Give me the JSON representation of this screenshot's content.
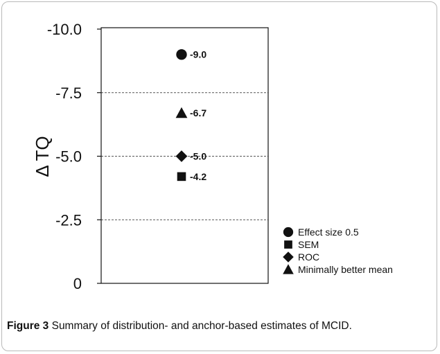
{
  "chart_data": {
    "type": "scatter",
    "ylabel": "Δ TQ",
    "ylim": [
      0,
      -10
    ],
    "yticks": [
      "-10.0",
      "-7.5",
      "-5.0",
      "-2.5",
      "0"
    ],
    "ytick_values": [
      -10,
      -7.5,
      -5,
      -2.5,
      0
    ],
    "gridlines_at": [
      -7.5,
      -5,
      -2.5
    ],
    "legend_position": "bottom-right",
    "series": [
      {
        "name": "Effect size 0.5",
        "marker": "circle",
        "values": [
          -9.0
        ],
        "label": "-9.0"
      },
      {
        "name": "SEM",
        "marker": "square",
        "values": [
          -4.2
        ],
        "label": "-4.2"
      },
      {
        "name": "ROC",
        "marker": "diamond",
        "values": [
          -5.0
        ],
        "label": "-5.0"
      },
      {
        "name": "Minimally better mean",
        "marker": "triangle",
        "values": [
          -6.7
        ],
        "label": "-6.7"
      }
    ]
  },
  "caption": {
    "label": "Figure 3",
    "text": " Summary of distribution- and anchor-based estimates of MCID."
  },
  "colors": {
    "ink": "#111111",
    "grid": "#555555"
  }
}
